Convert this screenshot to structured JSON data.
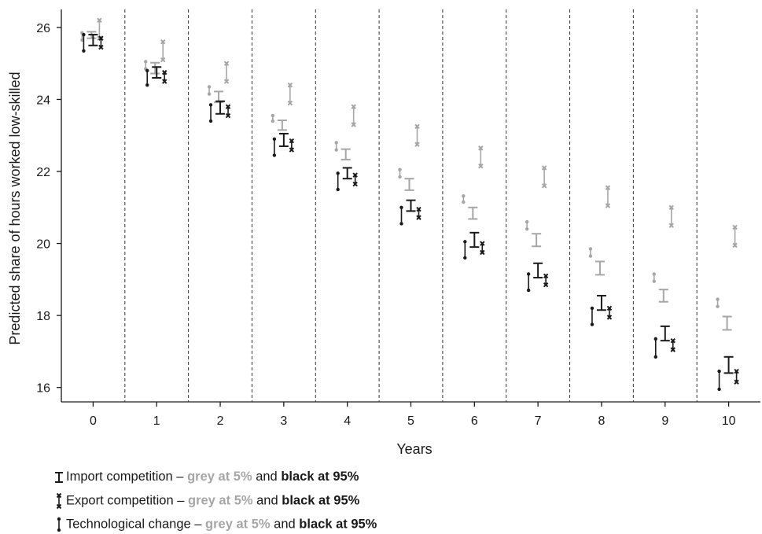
{
  "chart_data": {
    "type": "scatter",
    "xlabel": "Years",
    "ylabel": "Predicted share of hours worked low-skilled",
    "x_ticks": [
      "0",
      "1",
      "2",
      "3",
      "4",
      "5",
      "6",
      "7",
      "8",
      "9",
      "10"
    ],
    "y_ticks": [
      "16",
      "18",
      "20",
      "22",
      "24",
      "26"
    ],
    "xlim": [
      -0.5,
      10.5
    ],
    "ylim": [
      15.6,
      26.5
    ],
    "grid": "vertical dashed separators between years",
    "legend_position": "bottom-left",
    "colors": {
      "grey": "#a6a6a6",
      "black": "#1a1a1a"
    },
    "series": [
      {
        "name": "Import competition – grey at 5%",
        "marker": "I-beam",
        "color": "grey",
        "low": [
          25.7,
          24.72,
          23.92,
          23.15,
          22.33,
          21.48,
          20.68,
          19.92,
          19.13,
          18.38,
          17.6
        ],
        "high": [
          25.88,
          25.02,
          24.22,
          23.42,
          22.62,
          21.8,
          21.0,
          20.27,
          19.5,
          18.72,
          17.97
        ]
      },
      {
        "name": "Import competition – black at 95%",
        "marker": "I-beam",
        "color": "black",
        "low": [
          25.5,
          24.6,
          23.6,
          22.7,
          21.8,
          20.9,
          19.9,
          19.05,
          18.15,
          17.3,
          16.4
        ],
        "high": [
          25.8,
          24.9,
          23.95,
          23.05,
          22.1,
          21.2,
          20.3,
          19.45,
          18.55,
          17.7,
          16.85
        ]
      },
      {
        "name": "Export competition – grey at 5%",
        "marker": "x-range",
        "color": "grey",
        "low": [
          25.7,
          25.1,
          24.5,
          23.9,
          23.3,
          22.75,
          22.15,
          21.6,
          21.05,
          20.5,
          19.95
        ],
        "high": [
          26.2,
          25.6,
          25.0,
          24.4,
          23.8,
          23.25,
          22.65,
          22.1,
          21.55,
          21.0,
          20.45
        ]
      },
      {
        "name": "Export competition – black at 95%",
        "marker": "x-range",
        "color": "black",
        "low": [
          25.45,
          24.5,
          23.55,
          22.6,
          21.65,
          20.72,
          19.75,
          18.85,
          17.95,
          17.05,
          16.15
        ],
        "high": [
          25.7,
          24.75,
          23.8,
          22.85,
          21.9,
          20.95,
          20.0,
          19.1,
          18.2,
          17.3,
          16.45
        ]
      },
      {
        "name": "Technological change – grey at 5%",
        "marker": "dot-range",
        "color": "grey",
        "low": [
          25.65,
          24.85,
          24.15,
          23.4,
          22.6,
          21.85,
          21.15,
          20.4,
          19.65,
          18.95,
          18.25
        ],
        "high": [
          25.85,
          25.05,
          24.35,
          23.55,
          22.8,
          22.05,
          21.32,
          20.6,
          19.85,
          19.15,
          18.45
        ]
      },
      {
        "name": "Technological change – black at 95%",
        "marker": "dot-range",
        "color": "black",
        "low": [
          25.35,
          24.4,
          23.4,
          22.45,
          21.5,
          20.55,
          19.6,
          18.7,
          17.75,
          16.85,
          15.95
        ],
        "high": [
          25.8,
          24.8,
          23.85,
          22.9,
          21.95,
          21.0,
          20.05,
          19.15,
          18.2,
          17.35,
          16.45
        ]
      }
    ]
  },
  "legend": {
    "import": {
      "prefix": "Import competition – ",
      "grey": "grey at 5%",
      "mid": " and ",
      "black": "black at 95%"
    },
    "export": {
      "prefix": "Export competition – ",
      "grey": "grey at 5%",
      "mid": " and ",
      "black": "black at 95%"
    },
    "tech": {
      "prefix": "Technological change – ",
      "grey": "grey at 5%",
      "mid": " and ",
      "black": "black at 95%"
    }
  }
}
